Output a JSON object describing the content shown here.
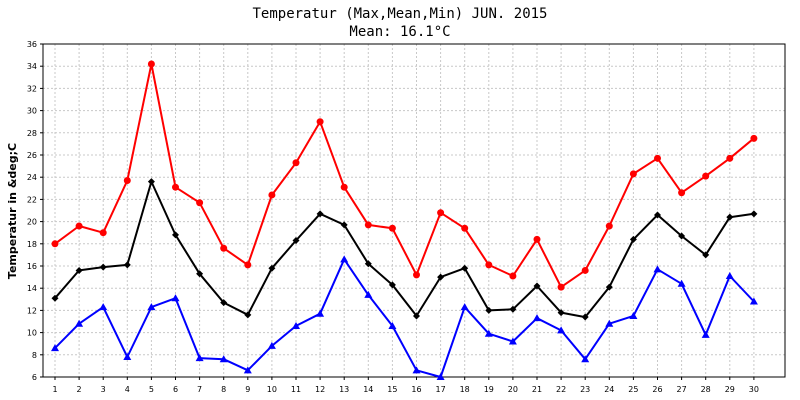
{
  "chart_data": {
    "type": "line",
    "title": "Temperatur (Max,Mean,Min) JUN. 2015",
    "subtitle": "Mean: 16.1°C",
    "xlabel": "",
    "ylabel": "Temperatur in &deg;C",
    "ylim": [
      6,
      36
    ],
    "yticks": [
      6,
      8,
      10,
      12,
      14,
      16,
      18,
      20,
      22,
      24,
      26,
      28,
      30,
      32,
      34,
      36
    ],
    "grid": true,
    "legend": "none",
    "x": [
      1,
      2,
      3,
      4,
      5,
      6,
      7,
      8,
      9,
      10,
      11,
      12,
      13,
      14,
      15,
      16,
      17,
      18,
      19,
      20,
      21,
      22,
      23,
      24,
      25,
      26,
      27,
      28,
      29,
      30
    ],
    "series": [
      {
        "color": "#ff0000",
        "marker": "circle",
        "values": [
          18.0,
          19.6,
          19.0,
          23.7,
          34.2,
          23.1,
          21.7,
          17.6,
          16.1,
          22.4,
          25.3,
          29.0,
          23.1,
          19.7,
          19.4,
          15.2,
          20.8,
          19.4,
          16.1,
          15.1,
          18.4,
          14.1,
          15.6,
          19.6,
          24.3,
          25.7,
          22.6,
          24.1,
          25.7,
          27.5
        ]
      },
      {
        "color": "#000000",
        "marker": "diamond",
        "values": [
          13.1,
          15.6,
          15.9,
          16.1,
          23.6,
          18.8,
          15.3,
          12.7,
          11.6,
          15.8,
          18.3,
          20.7,
          19.7,
          16.2,
          14.3,
          11.5,
          15.0,
          15.8,
          12.0,
          12.1,
          14.2,
          11.8,
          11.4,
          14.1,
          18.4,
          20.6,
          18.7,
          17.0,
          20.4,
          20.7
        ]
      },
      {
        "color": "#0000ff",
        "marker": "triangle",
        "values": [
          8.6,
          10.8,
          12.3,
          7.8,
          12.3,
          13.1,
          7.7,
          7.6,
          6.6,
          8.8,
          10.6,
          11.7,
          16.6,
          13.4,
          10.6,
          6.6,
          6.0,
          12.3,
          9.9,
          9.2,
          11.3,
          10.2,
          7.6,
          10.8,
          11.5,
          15.7,
          14.4,
          9.8,
          15.1,
          12.8
        ]
      }
    ]
  }
}
